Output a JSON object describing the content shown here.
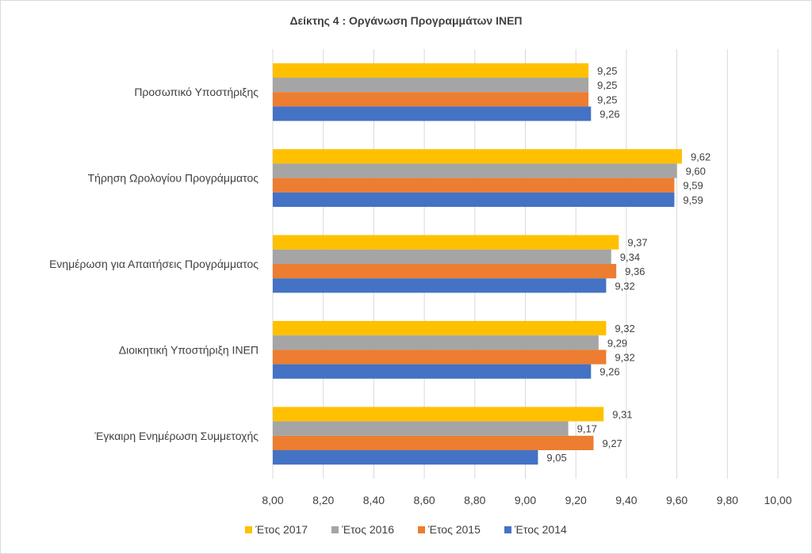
{
  "chart_data": {
    "type": "bar",
    "orientation": "horizontal",
    "title": "Δείκτης 4 : Οργάνωση Προγραμμάτων ΙΝΕΠ",
    "categories": [
      "Προσωπικό Υποστήριξης",
      "Τήρηση Ωρολογίου Προγράμματος",
      "Ενημέρωση για Απαιτήσεις Προγράμματος",
      "Διοικητική Υποστήριξη ΙΝΕΠ",
      "Έγκαιρη Ενημέρωση Συμμετοχής"
    ],
    "series": [
      {
        "name": "Έτος 2017",
        "color": "#FFC000",
        "values": [
          9.25,
          9.62,
          9.37,
          9.32,
          9.31
        ],
        "labels": [
          "9,25",
          "9,62",
          "9,37",
          "9,32",
          "9,31"
        ]
      },
      {
        "name": "Έτος 2016",
        "color": "#A5A5A5",
        "values": [
          9.25,
          9.6,
          9.34,
          9.29,
          9.17
        ],
        "labels": [
          "9,25",
          "9,60",
          "9,34",
          "9,29",
          "9,17"
        ]
      },
      {
        "name": "Έτος 2015",
        "color": "#ED7D31",
        "values": [
          9.25,
          9.59,
          9.36,
          9.32,
          9.27
        ],
        "labels": [
          "9,25",
          "9,59",
          "9,36",
          "9,32",
          "9,27"
        ]
      },
      {
        "name": "Έτος 2014",
        "color": "#4472C4",
        "values": [
          9.26,
          9.59,
          9.32,
          9.26,
          9.05
        ],
        "labels": [
          "9,26",
          "9,59",
          "9,32",
          "9,26",
          "9,05"
        ]
      }
    ],
    "xlim": [
      8.0,
      10.0
    ],
    "ticks": [
      8.0,
      8.2,
      8.4,
      8.6,
      8.8,
      9.0,
      9.2,
      9.4,
      9.6,
      9.8,
      10.0
    ],
    "tick_labels": [
      "8,00",
      "8,20",
      "8,40",
      "8,60",
      "8,80",
      "9,00",
      "9,20",
      "9,40",
      "9,60",
      "9,80",
      "10,00"
    ],
    "grid": true,
    "legend_position": "bottom"
  }
}
